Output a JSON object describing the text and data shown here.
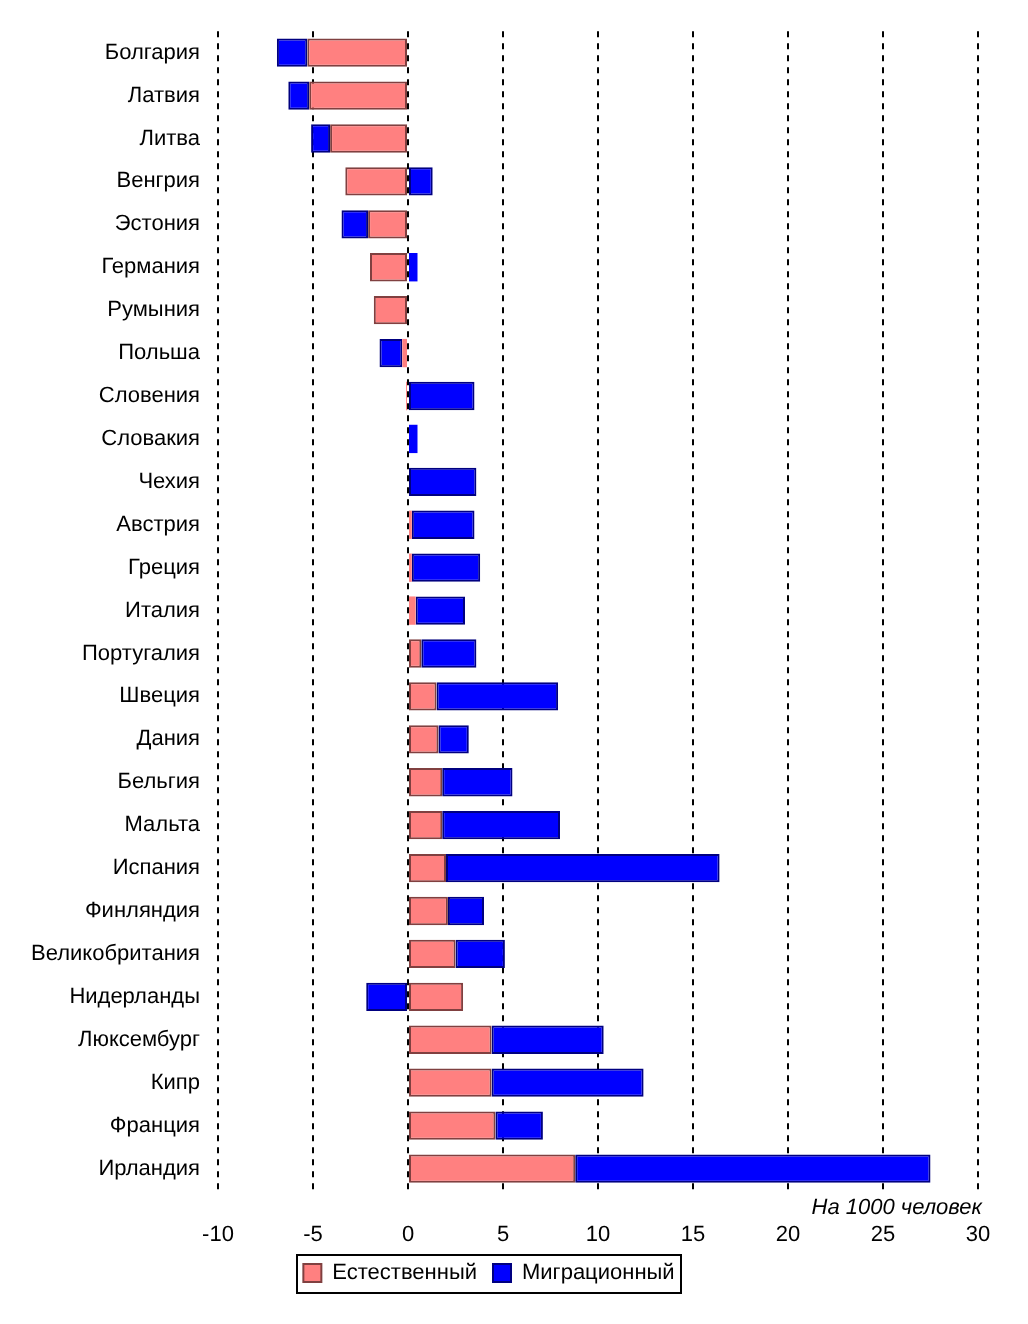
{
  "chart_data": {
    "type": "bar",
    "orientation": "horizontal",
    "stacked": true,
    "categories": [
      "Болгария",
      "Латвия",
      "Литва",
      "Венгрия",
      "Эстония",
      "Германия",
      "Румыния",
      "Польша",
      "Словения",
      "Словакия",
      "Чехия",
      "Австрия",
      "Греция",
      "Италия",
      "Португалия",
      "Швеция",
      "Дания",
      "Бельгия",
      "Мальта",
      "Испания",
      "Финляндия",
      "Великобритания",
      "Нидерланды",
      "Люксембург",
      "Кипр",
      "Франция",
      "Ирландия"
    ],
    "series": [
      {
        "name": "Естественный",
        "color": "#ff8080",
        "values": [
          -5.3,
          -5.2,
          -4.1,
          -3.3,
          -2.1,
          -2.0,
          -1.8,
          -0.3,
          -0.1,
          0,
          0,
          0.2,
          0.2,
          0.4,
          0.7,
          1.5,
          1.6,
          1.8,
          1.8,
          2.0,
          2.1,
          2.5,
          2.9,
          4.4,
          4.4,
          4.6,
          8.8
        ]
      },
      {
        "name": "Миграционный",
        "color": "#0000ff",
        "values": [
          -1.6,
          -1.1,
          -1.0,
          1.3,
          -1.4,
          0.5,
          0,
          -1.2,
          3.5,
          0.5,
          3.6,
          3.3,
          3.6,
          2.6,
          2.9,
          6.4,
          1.6,
          3.7,
          6.2,
          14.4,
          1.9,
          2.6,
          -2.2,
          5.9,
          8.0,
          2.5,
          18.7
        ]
      }
    ],
    "xlim": [
      -10,
      30
    ],
    "xticks": [
      -10,
      -5,
      0,
      5,
      10,
      15,
      20,
      25,
      30
    ],
    "grid": "x",
    "legend": "bottom",
    "annotations": [
      "На 1000 человек"
    ]
  }
}
